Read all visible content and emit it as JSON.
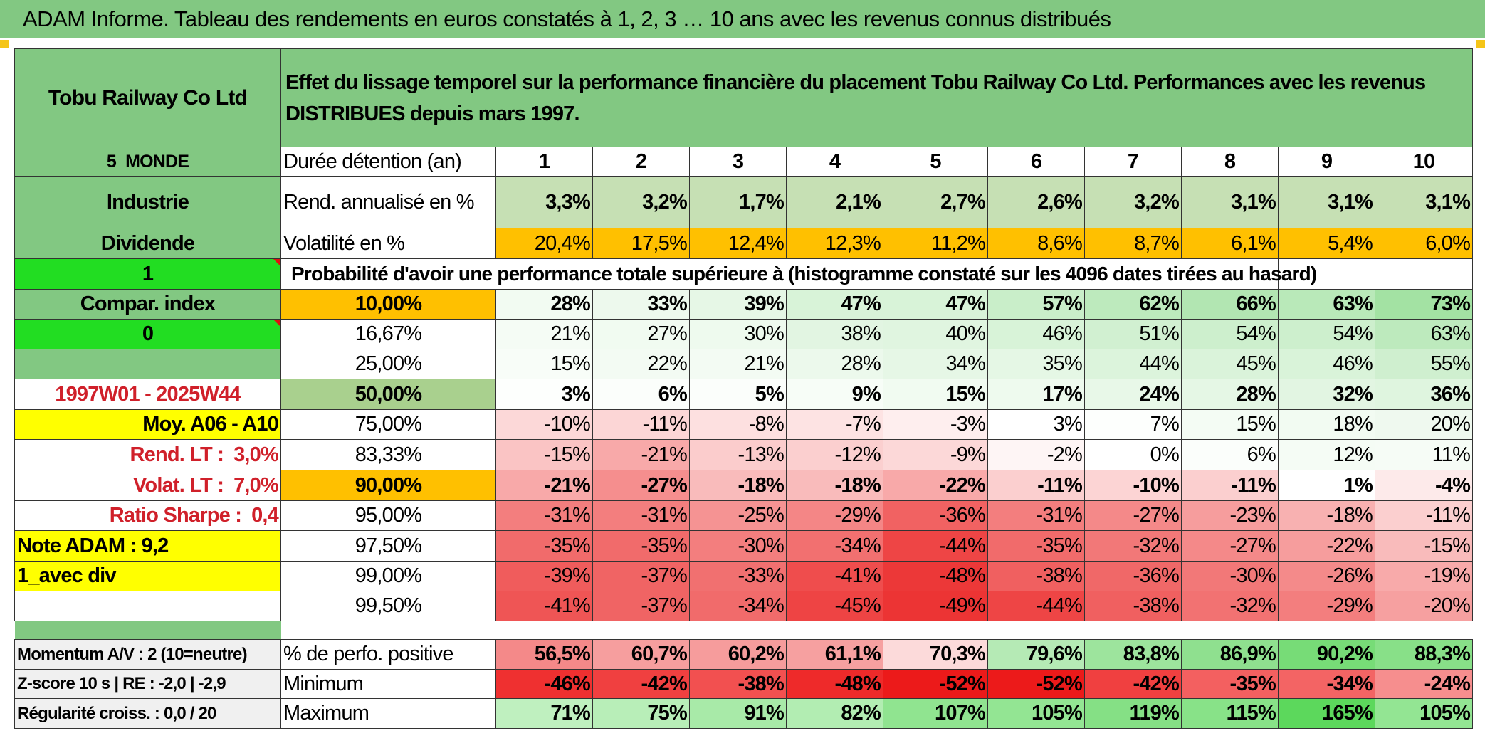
{
  "title": "ADAM Informe. Tableau des rendements en euros constatés à 1, 2, 3 … 10 ans avec les revenus connus distribués",
  "header": {
    "asset_name": "Tobu Railway Co Ltd",
    "description": "Effet du lissage temporel sur la performance financière du placement Tobu Railway Co Ltd. Performances avec les revenus DISTRIBUES depuis mars 1997."
  },
  "side": {
    "region": "5_MONDE",
    "sector": "Industrie",
    "income": "Dividende",
    "flag1": "1",
    "compar_index": "Compar. index",
    "flag0": "0",
    "period": "1997W01 - 2025W44",
    "moy": "Moy. A06 - A10",
    "rend_lt_label": "Rend. LT :",
    "rend_lt_value": "3,0%",
    "volat_lt_label": "Volat. LT :",
    "volat_lt_value": "7,0%",
    "sharpe_label": "Ratio Sharpe :",
    "sharpe_value": "0,4",
    "note": "Note ADAM : 9,2",
    "div_mode": "1_avec div",
    "momentum": "Momentum A/V : 2 (10=neutre)",
    "zscore": "Z-score 10 s | RE : -2,0 | -2,9",
    "regularite": "Régularité croiss. : 0,0 / 20"
  },
  "labels": {
    "duree": "Durée détention (an)",
    "rend": "Rend. annualisé en %",
    "volat": "Volatilité en %",
    "proba": "Probabilité d'avoir une performance totale supérieure à (histogramme constaté sur les 4096 dates tirées au hasard)",
    "perf_pos": "% de perfo. positive",
    "minimum": "Minimum",
    "maximum": "Maximum"
  },
  "years": [
    "1",
    "2",
    "3",
    "4",
    "5",
    "6",
    "7",
    "8",
    "9",
    "10"
  ],
  "rend": [
    "3,3%",
    "3,2%",
    "1,7%",
    "2,1%",
    "2,7%",
    "2,6%",
    "3,2%",
    "3,1%",
    "3,1%",
    "3,1%"
  ],
  "volat": [
    "20,4%",
    "17,5%",
    "12,4%",
    "12,3%",
    "11,2%",
    "8,6%",
    "8,7%",
    "6,1%",
    "5,4%",
    "6,0%"
  ],
  "prob_rows": [
    {
      "threshold": "10,00%",
      "values": [
        "28%",
        "33%",
        "39%",
        "47%",
        "47%",
        "57%",
        "62%",
        "66%",
        "63%",
        "73%"
      ]
    },
    {
      "threshold": "16,67%",
      "values": [
        "21%",
        "27%",
        "30%",
        "38%",
        "40%",
        "46%",
        "51%",
        "54%",
        "54%",
        "63%"
      ]
    },
    {
      "threshold": "25,00%",
      "values": [
        "15%",
        "22%",
        "21%",
        "28%",
        "34%",
        "35%",
        "44%",
        "45%",
        "46%",
        "55%"
      ]
    },
    {
      "threshold": "50,00%",
      "values": [
        "3%",
        "6%",
        "5%",
        "9%",
        "15%",
        "17%",
        "24%",
        "28%",
        "32%",
        "36%"
      ]
    },
    {
      "threshold": "75,00%",
      "values": [
        "-10%",
        "-11%",
        "-8%",
        "-7%",
        "-3%",
        "3%",
        "7%",
        "15%",
        "18%",
        "20%"
      ]
    },
    {
      "threshold": "83,33%",
      "values": [
        "-15%",
        "-21%",
        "-13%",
        "-12%",
        "-9%",
        "-2%",
        "0%",
        "6%",
        "12%",
        "11%"
      ]
    },
    {
      "threshold": "90,00%",
      "values": [
        "-21%",
        "-27%",
        "-18%",
        "-18%",
        "-22%",
        "-11%",
        "-10%",
        "-11%",
        "1%",
        "-4%"
      ]
    },
    {
      "threshold": "95,00%",
      "values": [
        "-31%",
        "-31%",
        "-25%",
        "-29%",
        "-36%",
        "-31%",
        "-27%",
        "-23%",
        "-18%",
        "-11%"
      ]
    },
    {
      "threshold": "97,50%",
      "values": [
        "-35%",
        "-35%",
        "-30%",
        "-34%",
        "-44%",
        "-35%",
        "-32%",
        "-27%",
        "-22%",
        "-15%"
      ]
    },
    {
      "threshold": "99,00%",
      "values": [
        "-39%",
        "-37%",
        "-33%",
        "-41%",
        "-48%",
        "-38%",
        "-36%",
        "-30%",
        "-26%",
        "-19%"
      ]
    },
    {
      "threshold": "99,50%",
      "values": [
        "-41%",
        "-37%",
        "-34%",
        "-45%",
        "-49%",
        "-44%",
        "-38%",
        "-32%",
        "-29%",
        "-20%"
      ]
    }
  ],
  "perf_pos": [
    "56,5%",
    "60,7%",
    "60,2%",
    "61,1%",
    "70,3%",
    "79,6%",
    "83,8%",
    "86,9%",
    "90,2%",
    "88,3%"
  ],
  "minimum": [
    "-46%",
    "-42%",
    "-38%",
    "-48%",
    "-52%",
    "-52%",
    "-42%",
    "-35%",
    "-34%",
    "-24%"
  ],
  "maximum": [
    "71%",
    "75%",
    "91%",
    "82%",
    "107%",
    "105%",
    "119%",
    "115%",
    "165%",
    "105%"
  ],
  "colors": {
    "header_green": "#82c882",
    "rend_green": "#c6e0b4",
    "volat_orange": "#ffc000",
    "bright_green": "#22dd22",
    "yellow": "#ffff00",
    "label_red": "#d0202a"
  },
  "fills": {
    "prob": [
      [
        "#f2fbf2",
        "#edf9ed",
        "#e6f7e6",
        "#d8f3d8",
        "#d8f3d8",
        "#c9eec9",
        "#bdeabd",
        "#b2e6b2",
        "#b9e9b9",
        "#a3e2a3"
      ],
      [
        "#f5fcf5",
        "#f1fbf1",
        "#eefaee",
        "#e2f5e2",
        "#e0f5e0",
        "#d8f3d8",
        "#d1f0d1",
        "#cdefcd",
        "#cdefcd",
        "#bdeabd"
      ],
      [
        "#f8fdf8",
        "#f3fbf3",
        "#f3fbf3",
        "#ecf9ec",
        "#e6f7e6",
        "#e5f7e5",
        "#dcf4dc",
        "#daf3da",
        "#d9f3d9",
        "#cfefcf"
      ],
      [
        "#fdfffd",
        "#fbfefb",
        "#fbfefb",
        "#f7fdf7",
        "#f1fbf1",
        "#eefaee",
        "#e8f8e8",
        "#e5f7e5",
        "#e2f5e2",
        "#dff5df"
      ],
      [
        "#fcd8d8",
        "#fcd6d6",
        "#fde0e0",
        "#fde3e3",
        "#feeeee",
        "#ffffff",
        "#fdfffd",
        "#f4fcf4",
        "#f2fbf2",
        "#eff9ef"
      ],
      [
        "#fac4c4",
        "#f8a9a9",
        "#fbcccc",
        "#fbcfcf",
        "#fcd8d8",
        "#fef5f5",
        "#ffffff",
        "#fbfefb",
        "#f5fcf5",
        "#f6fcf6"
      ],
      [
        "#f8a9a9",
        "#f58e8e",
        "#f9bbbb",
        "#f9bbbb",
        "#f8a9a9",
        "#fbcfcf",
        "#fcd4d4",
        "#fbcfcf",
        "#ffffff",
        "#fdeaea"
      ],
      [
        "#f37e7e",
        "#f37e7e",
        "#f59393",
        "#f48686",
        "#f16262",
        "#f37e7e",
        "#f48989",
        "#f69d9d",
        "#f8b1b1",
        "#fbcfcf"
      ],
      [
        "#f16b6b",
        "#f16b6b",
        "#f37e7e",
        "#f27070",
        "#ee4545",
        "#f16b6b",
        "#f27878",
        "#f48989",
        "#f69d9d",
        "#f9bbbb"
      ],
      [
        "#f05c5c",
        "#f06464",
        "#f17070",
        "#ef4d4d",
        "#ec3838",
        "#f06060",
        "#f06868",
        "#f27878",
        "#f48a8a",
        "#f8aaaa"
      ],
      [
        "#ef5555",
        "#f06464",
        "#f16b6b",
        "#ee4444",
        "#ec3434",
        "#ee4545",
        "#f06060",
        "#f27272",
        "#f37e7e",
        "#f6a0a0"
      ]
    ],
    "perf_pos": [
      "#f48989",
      "#f69e9e",
      "#f69c9c",
      "#f6a0a0",
      "#fcdada",
      "#b5eab5",
      "#9de49d",
      "#8fe08f",
      "#77dc77",
      "#88e088"
    ],
    "minimum": [
      "#ef3030",
      "#f04040",
      "#f25050",
      "#ee2a2a",
      "#ec1a1a",
      "#ec1a1a",
      "#f04040",
      "#f36060",
      "#f36464",
      "#f68e8e"
    ],
    "maximum": [
      "#bff0bf",
      "#b8eeb8",
      "#a8eaa8",
      "#b2edb2",
      "#90e490",
      "#93e593",
      "#85e085",
      "#88e288",
      "#5cd85c",
      "#93e593"
    ]
  }
}
